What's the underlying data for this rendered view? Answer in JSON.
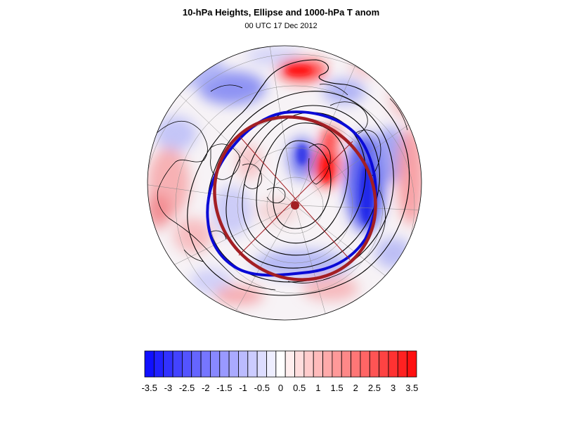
{
  "title": "10-hPa Heights, Ellipse and 1000-hPa T anom",
  "subtitle": "00 UTC 17 Dec 2012",
  "colorbar": {
    "labels": [
      "-3.5",
      "-3",
      "-2.5",
      "-2",
      "-1.5",
      "-1",
      "-0.5",
      "0",
      "0.5",
      "1",
      "1.5",
      "2",
      "2.5",
      "3",
      "3.5"
    ],
    "min": -3.5,
    "max": 3.5,
    "step": 0.25,
    "colors": {
      "negative_end": "#1010ff",
      "positive_end": "#ff1010",
      "center": "#ffffff"
    }
  },
  "map": {
    "projection": "north-polar stereographic",
    "colors": {
      "ellipse": "#a31f24",
      "vortex_edge_contour": "#0a0ad6",
      "height_contours": "#000000",
      "coastlines": "#000000",
      "graticule": "#8a8a8a"
    }
  }
}
